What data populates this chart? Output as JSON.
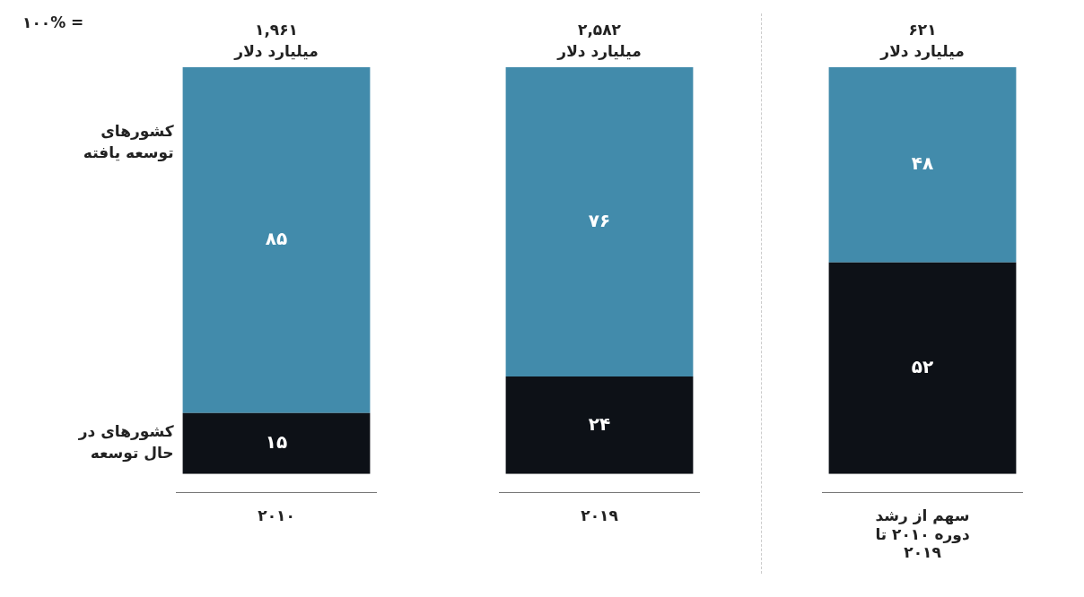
{
  "chart_data": {
    "type": "bar",
    "stacked": true,
    "categories": [
      "۲۰۱۰",
      "۲۰۱۹",
      "سهم از رشد دوره ۲۰۱۰ تا ۲۰۱۹"
    ],
    "series": [
      {
        "name": "کشورهای در حال توسعه",
        "color": "#0d1117",
        "values": [
          15,
          24,
          52
        ],
        "value_labels": [
          "۱۵",
          "۲۴",
          "۵۲"
        ]
      },
      {
        "name": "کشورهای توسعه یافته",
        "color": "#428bab",
        "values": [
          85,
          76,
          48
        ],
        "value_labels": [
          "۸۵",
          "۷۶",
          "۴۸"
        ]
      }
    ],
    "annotations": [
      "۱۰۰% =",
      {
        "text": "۱,۹۶۱ میلیارد دلار",
        "x": "۲۰۱۰",
        "y": 100
      },
      {
        "text": "۲,۵۸۲ میلیارد دلار",
        "x": "۲۰۱۹",
        "y": 100
      },
      {
        "text": "۶۲۱ میلیارد دلار",
        "x": "سهم از رشد دوره ۲۰۱۰ تا ۲۰۱۹",
        "y": 100
      }
    ],
    "ylim": [
      0,
      100
    ],
    "tick_labels": "x",
    "grid": false,
    "legend": false
  }
}
